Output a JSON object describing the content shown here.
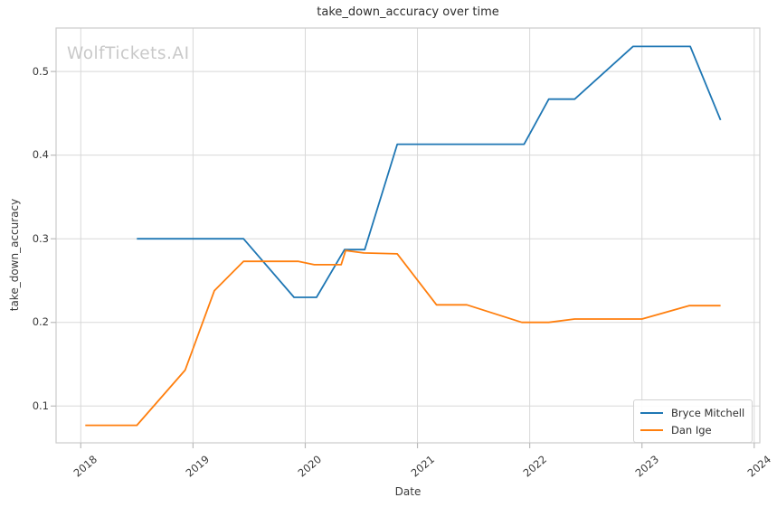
{
  "watermark": "WolfTickets.AI",
  "colors": {
    "bryce_mitchell_line": "#1f77b4",
    "dan_ige_line": "#ff7f0e",
    "grid": "#d8d8d8",
    "spine": "#cccccc",
    "tick_mark": "#bbbbbb",
    "text": "#3a3a3a",
    "watermark": "#c9c9c9"
  },
  "chart_data": {
    "type": "line",
    "title": "take_down_accuracy over time",
    "xlabel": "Date",
    "ylabel": "take_down_accuracy",
    "xlim": [
      2017.78,
      2024.05
    ],
    "ylim": [
      0.056,
      0.552
    ],
    "xticks": [
      2018,
      2019,
      2020,
      2021,
      2022,
      2023,
      2024
    ],
    "yticks": [
      0.1,
      0.2,
      0.3,
      0.4,
      0.5
    ],
    "grid": true,
    "legend_position": "lower right",
    "series": [
      {
        "name": "Bryce Mitchell",
        "color": "#1f77b4",
        "points": [
          [
            2018.5,
            0.3
          ],
          [
            2019.45,
            0.3
          ],
          [
            2019.9,
            0.23
          ],
          [
            2020.1,
            0.23
          ],
          [
            2020.35,
            0.287
          ],
          [
            2020.53,
            0.287
          ],
          [
            2020.82,
            0.413
          ],
          [
            2021.95,
            0.413
          ],
          [
            2022.17,
            0.467
          ],
          [
            2022.4,
            0.467
          ],
          [
            2022.92,
            0.53
          ],
          [
            2023.43,
            0.53
          ],
          [
            2023.7,
            0.442
          ]
        ]
      },
      {
        "name": "Dan Ige",
        "color": "#ff7f0e",
        "points": [
          [
            2018.04,
            0.077
          ],
          [
            2018.5,
            0.077
          ],
          [
            2018.93,
            0.143
          ],
          [
            2019.19,
            0.238
          ],
          [
            2019.45,
            0.273
          ],
          [
            2019.94,
            0.273
          ],
          [
            2020.08,
            0.269
          ],
          [
            2020.32,
            0.269
          ],
          [
            2020.36,
            0.286
          ],
          [
            2020.52,
            0.283
          ],
          [
            2020.82,
            0.282
          ],
          [
            2021.17,
            0.221
          ],
          [
            2021.44,
            0.221
          ],
          [
            2021.93,
            0.2
          ],
          [
            2022.17,
            0.2
          ],
          [
            2022.4,
            0.204
          ],
          [
            2023.0,
            0.204
          ],
          [
            2023.42,
            0.22
          ],
          [
            2023.7,
            0.22
          ]
        ]
      }
    ]
  }
}
